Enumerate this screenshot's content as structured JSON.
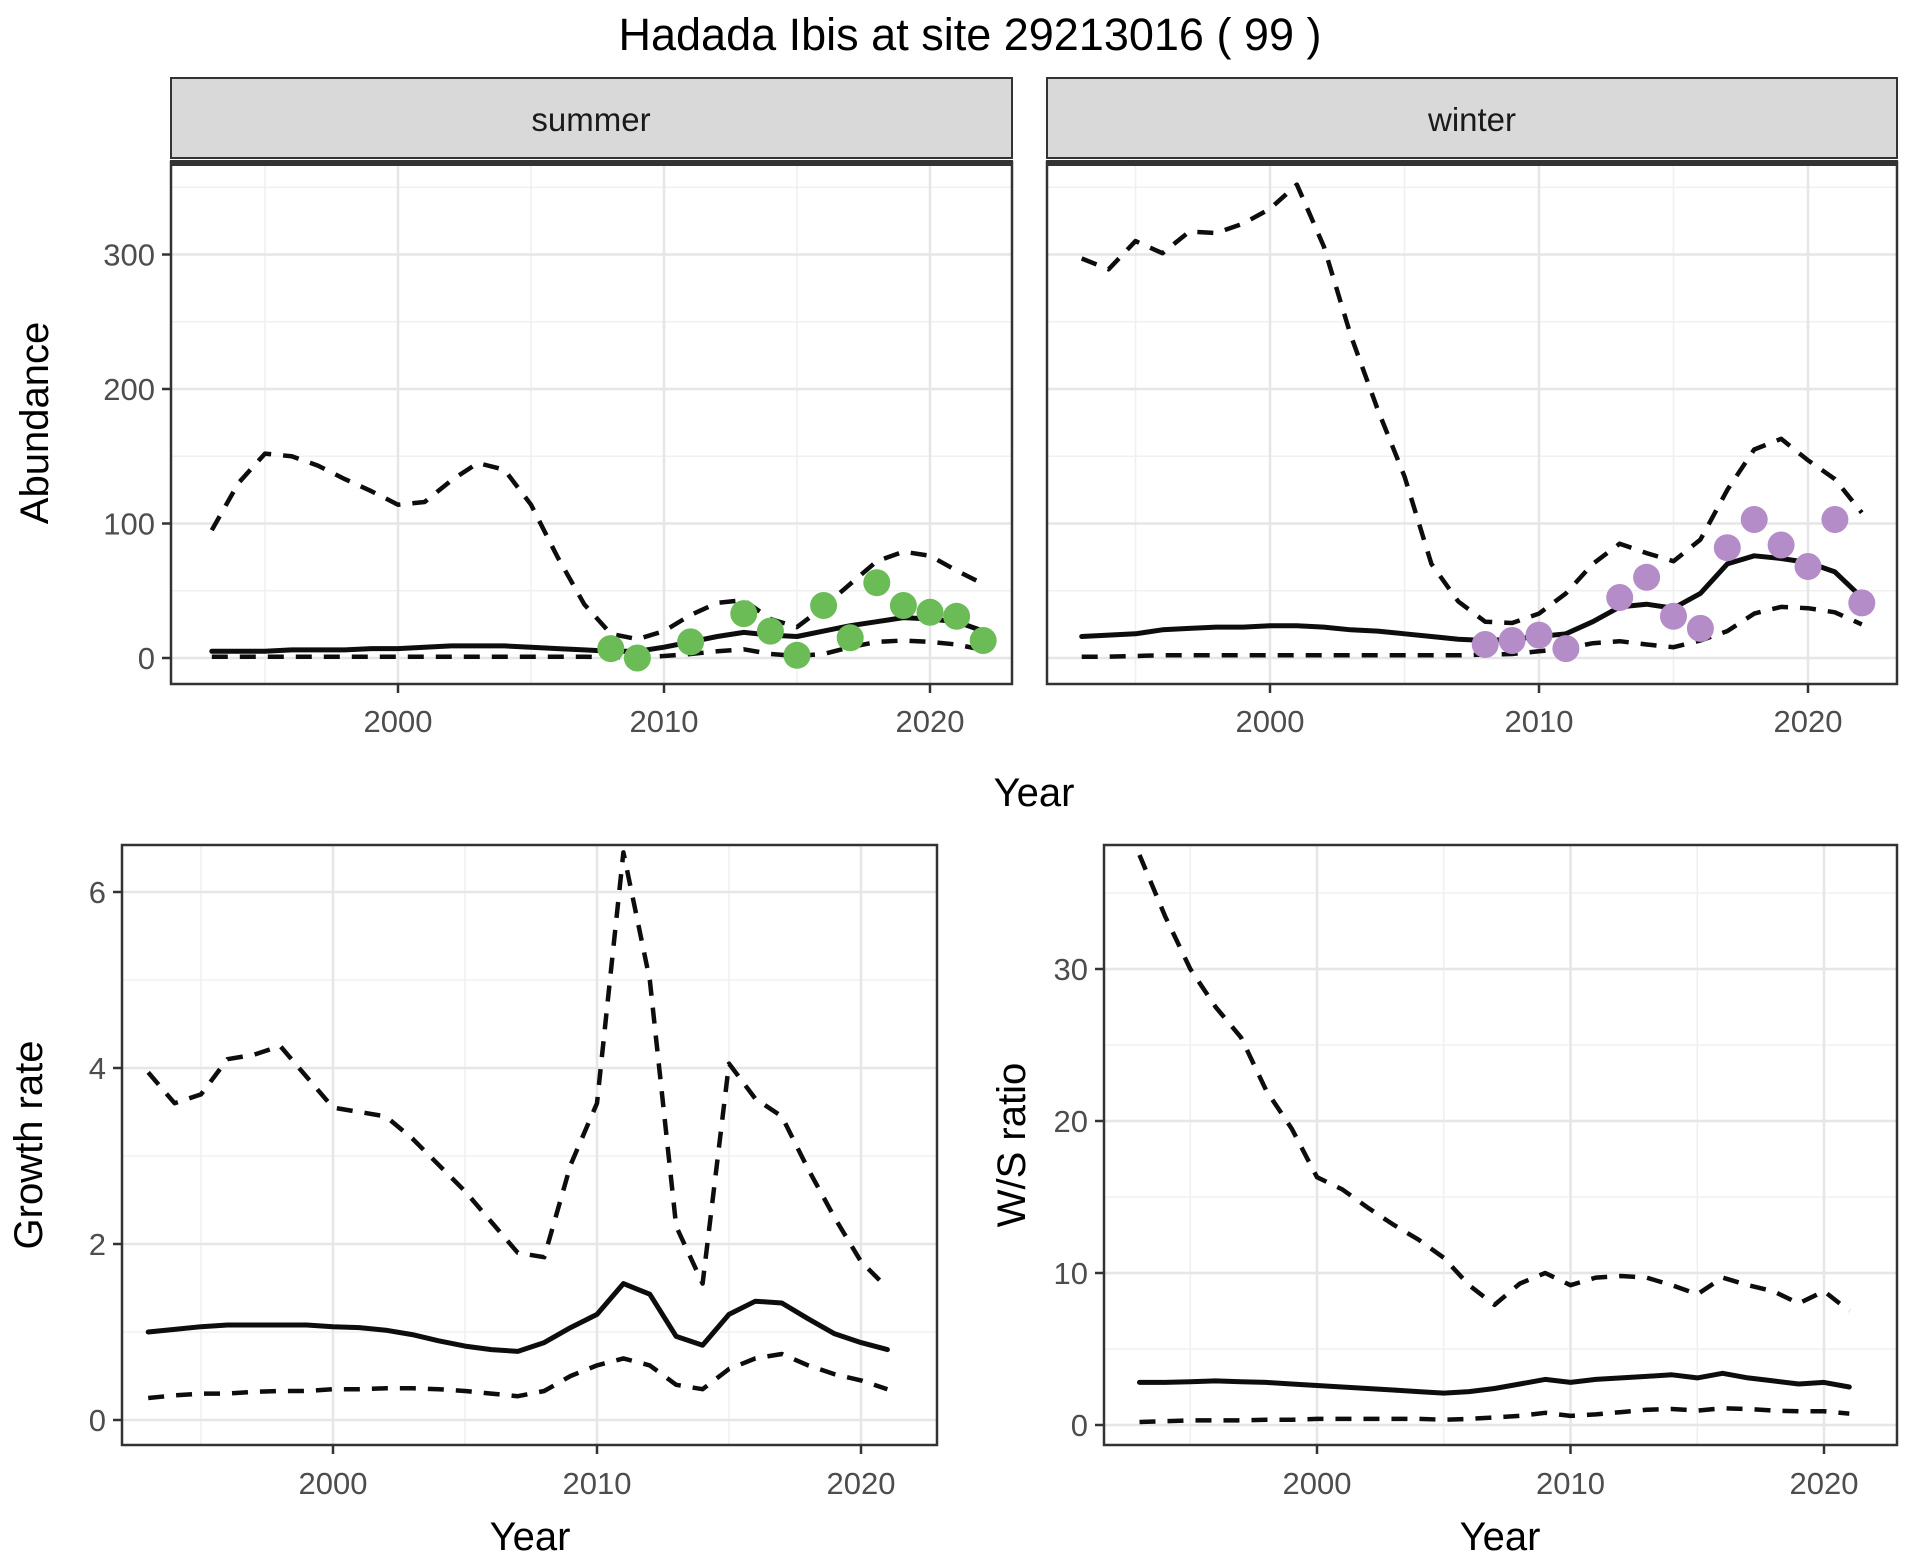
{
  "title": "Hadada Ibis at site 29213016 ( 99 )",
  "colors": {
    "summer_points": "#6bbb57",
    "winter_points": "#b48cc8",
    "line": "#0d0d0d",
    "strip_bg": "#d9d9d9",
    "panel_border": "#333333",
    "grid_major": "#e6e6e6",
    "grid_minor": "#f0f0f0",
    "axis_text": "#4d4d4d"
  },
  "chart_data": [
    {
      "id": "abundance-summer",
      "type": "line",
      "facet_label": "summer",
      "xlabel": "Year",
      "ylabel": "Abundance",
      "ylim": [
        0,
        370
      ],
      "xlim": [
        1991.5,
        2023.5
      ],
      "x_ticks": [
        2000,
        2010,
        2020
      ],
      "x_minor": [
        1995,
        2005,
        2015
      ],
      "y_ticks": [
        0,
        100,
        200,
        300
      ],
      "y_minor": [
        50,
        150,
        250,
        350
      ],
      "legend": "none",
      "years": [
        1993,
        1994,
        1995,
        1996,
        1997,
        1998,
        1999,
        2000,
        2001,
        2002,
        2003,
        2004,
        2005,
        2006,
        2007,
        2008,
        2009,
        2010,
        2011,
        2012,
        2013,
        2014,
        2015,
        2016,
        2017,
        2018,
        2019,
        2020,
        2021,
        2022
      ],
      "series": [
        {
          "name": "upper-95ci",
          "style": "dashed",
          "values": [
            95,
            130,
            152,
            150,
            143,
            133,
            124,
            114,
            116,
            132,
            145,
            140,
            114,
            75,
            40,
            18,
            14,
            20,
            32,
            41,
            43,
            29,
            23,
            38,
            55,
            72,
            79,
            76,
            65,
            55
          ]
        },
        {
          "name": "median",
          "style": "solid",
          "values": [
            5,
            5,
            5,
            6,
            6,
            6,
            7,
            7,
            8,
            9,
            9,
            9,
            8,
            7,
            6,
            5,
            5,
            8,
            12,
            16,
            19,
            17,
            16,
            20,
            24,
            27,
            30,
            29,
            27,
            20
          ]
        },
        {
          "name": "lower-95ci",
          "style": "dashed",
          "values": [
            1,
            1,
            1,
            1,
            1,
            1,
            1,
            1,
            1,
            1,
            1,
            1,
            1,
            1,
            1,
            0.5,
            0.5,
            1.5,
            3,
            5,
            6.5,
            3,
            1.5,
            3,
            8,
            12,
            13,
            12,
            10,
            6
          ]
        }
      ],
      "observations": {
        "color": "#6bbb57",
        "years": [
          2008,
          2009,
          2011,
          2013,
          2014,
          2015,
          2016,
          2017,
          2018,
          2019,
          2020,
          2021,
          2022
        ],
        "values": [
          7,
          0,
          12,
          33,
          20,
          2,
          39,
          15,
          56,
          39,
          34,
          31,
          13
        ]
      }
    },
    {
      "id": "abundance-winter",
      "type": "line",
      "facet_label": "winter",
      "xlabel": "Year",
      "ylabel": "Abundance",
      "ylim": [
        0,
        370
      ],
      "xlim": [
        1991.5,
        2023.5
      ],
      "x_ticks": [
        2000,
        2010,
        2020
      ],
      "x_minor": [
        1995,
        2005,
        2015
      ],
      "y_ticks": [
        0,
        100,
        200,
        300
      ],
      "y_minor": [
        50,
        150,
        250,
        350
      ],
      "legend": "none",
      "years": [
        1993,
        1994,
        1995,
        1996,
        1997,
        1998,
        1999,
        2000,
        2001,
        2002,
        2003,
        2004,
        2005,
        2006,
        2007,
        2008,
        2009,
        2010,
        2011,
        2012,
        2013,
        2014,
        2015,
        2016,
        2017,
        2018,
        2019,
        2020,
        2021,
        2022
      ],
      "series": [
        {
          "name": "upper-95ci",
          "style": "dashed",
          "values": [
            297,
            289,
            310,
            301,
            317,
            316,
            323,
            334,
            352,
            306,
            240,
            185,
            135,
            70,
            42,
            27,
            26,
            33,
            48,
            70,
            85,
            78,
            72,
            88,
            125,
            155,
            163,
            147,
            133,
            108
          ]
        },
        {
          "name": "median",
          "style": "solid",
          "values": [
            16,
            17,
            18,
            21,
            22,
            23,
            23,
            24,
            24,
            23,
            21,
            20,
            18,
            16,
            14,
            13,
            14,
            16,
            18,
            27,
            38,
            40,
            37,
            48,
            70,
            76,
            74,
            71,
            64,
            45
          ]
        },
        {
          "name": "lower-95ci",
          "style": "dashed",
          "values": [
            1,
            1,
            1.5,
            2,
            2,
            2,
            2,
            2,
            2,
            2,
            2,
            2,
            2,
            2,
            2,
            2.5,
            3,
            5,
            7,
            11,
            12.5,
            10,
            8,
            13,
            20,
            33,
            38,
            37,
            34,
            25
          ]
        }
      ],
      "observations": {
        "color": "#b48cc8",
        "years": [
          2008,
          2009,
          2010,
          2011,
          2013,
          2014,
          2015,
          2016,
          2017,
          2018,
          2019,
          2020,
          2021,
          2022
        ],
        "values": [
          10,
          13,
          17,
          7,
          45,
          60,
          31,
          22,
          82,
          103,
          84,
          68,
          103,
          41
        ]
      }
    },
    {
      "id": "growth-rate",
      "type": "line",
      "xlabel": "Year",
      "ylabel": "Growth rate",
      "ylim": [
        0,
        6.5
      ],
      "xlim": [
        1992,
        2023
      ],
      "x_ticks": [
        2000,
        2010,
        2020
      ],
      "x_minor": [
        1995,
        2005,
        2015
      ],
      "y_ticks": [
        0,
        2,
        4,
        6
      ],
      "y_minor": [
        1,
        3,
        5
      ],
      "legend": "none",
      "years": [
        1993,
        1994,
        1995,
        1996,
        1997,
        1998,
        1999,
        2000,
        2001,
        2002,
        2003,
        2004,
        2005,
        2006,
        2007,
        2008,
        2009,
        2010,
        2011,
        2012,
        2013,
        2014,
        2015,
        2016,
        2017,
        2018,
        2019,
        2020,
        2021
      ],
      "series": [
        {
          "name": "upper-95ci",
          "style": "dashed",
          "values": [
            3.95,
            3.6,
            3.7,
            4.1,
            4.15,
            4.25,
            3.9,
            3.55,
            3.5,
            3.45,
            3.2,
            2.9,
            2.6,
            2.25,
            1.9,
            1.85,
            2.9,
            3.6,
            6.45,
            5.0,
            2.2,
            1.55,
            4.05,
            3.65,
            3.45,
            2.85,
            2.3,
            1.8,
            1.5
          ]
        },
        {
          "name": "median",
          "style": "solid",
          "values": [
            1.0,
            1.03,
            1.06,
            1.08,
            1.08,
            1.08,
            1.08,
            1.06,
            1.05,
            1.02,
            0.97,
            0.9,
            0.84,
            0.8,
            0.78,
            0.88,
            1.05,
            1.2,
            1.55,
            1.43,
            0.95,
            0.85,
            1.2,
            1.35,
            1.33,
            1.15,
            0.98,
            0.88,
            0.8
          ]
        },
        {
          "name": "lower-95ci",
          "style": "dashed",
          "values": [
            0.25,
            0.28,
            0.3,
            0.3,
            0.32,
            0.33,
            0.33,
            0.35,
            0.35,
            0.36,
            0.36,
            0.35,
            0.33,
            0.3,
            0.27,
            0.33,
            0.5,
            0.62,
            0.7,
            0.62,
            0.4,
            0.35,
            0.58,
            0.7,
            0.75,
            0.62,
            0.52,
            0.45,
            0.35
          ]
        }
      ]
    },
    {
      "id": "ws-ratio",
      "type": "line",
      "xlabel": "Year",
      "ylabel": "W/S ratio",
      "ylim": [
        0,
        38
      ],
      "xlim": [
        1992,
        2023
      ],
      "x_ticks": [
        2000,
        2010,
        2020
      ],
      "x_minor": [
        1995,
        2005,
        2015
      ],
      "y_ticks": [
        0,
        10,
        20,
        30
      ],
      "y_minor": [
        5,
        15,
        25,
        35
      ],
      "legend": "none",
      "years": [
        1993,
        1994,
        1995,
        1996,
        1997,
        1998,
        1999,
        2000,
        2001,
        2002,
        2003,
        2004,
        2005,
        2006,
        2007,
        2008,
        2009,
        2010,
        2011,
        2012,
        2013,
        2014,
        2015,
        2016,
        2017,
        2018,
        2019,
        2020,
        2021
      ],
      "series": [
        {
          "name": "upper-95ci",
          "style": "dashed",
          "values": [
            37.5,
            33.5,
            30,
            27.5,
            25.5,
            22,
            19.5,
            16.3,
            15.5,
            14.3,
            13.2,
            12.2,
            11,
            9.2,
            7.9,
            9.3,
            10,
            9.2,
            9.7,
            9.8,
            9.7,
            9.2,
            8.6,
            9.7,
            9.2,
            8.8,
            8.0,
            8.8,
            7.5
          ]
        },
        {
          "name": "median",
          "style": "solid",
          "values": [
            2.8,
            2.8,
            2.85,
            2.9,
            2.85,
            2.8,
            2.7,
            2.6,
            2.5,
            2.4,
            2.3,
            2.2,
            2.1,
            2.2,
            2.4,
            2.7,
            3.0,
            2.8,
            3.0,
            3.1,
            3.2,
            3.3,
            3.1,
            3.4,
            3.1,
            2.9,
            2.7,
            2.8,
            2.5
          ]
        },
        {
          "name": "lower-95ci",
          "style": "dashed",
          "values": [
            0.2,
            0.25,
            0.3,
            0.3,
            0.3,
            0.35,
            0.35,
            0.4,
            0.4,
            0.4,
            0.4,
            0.4,
            0.35,
            0.4,
            0.5,
            0.6,
            0.8,
            0.6,
            0.7,
            0.85,
            1.0,
            1.05,
            0.95,
            1.1,
            1.05,
            0.95,
            0.9,
            0.9,
            0.75
          ]
        }
      ]
    }
  ]
}
